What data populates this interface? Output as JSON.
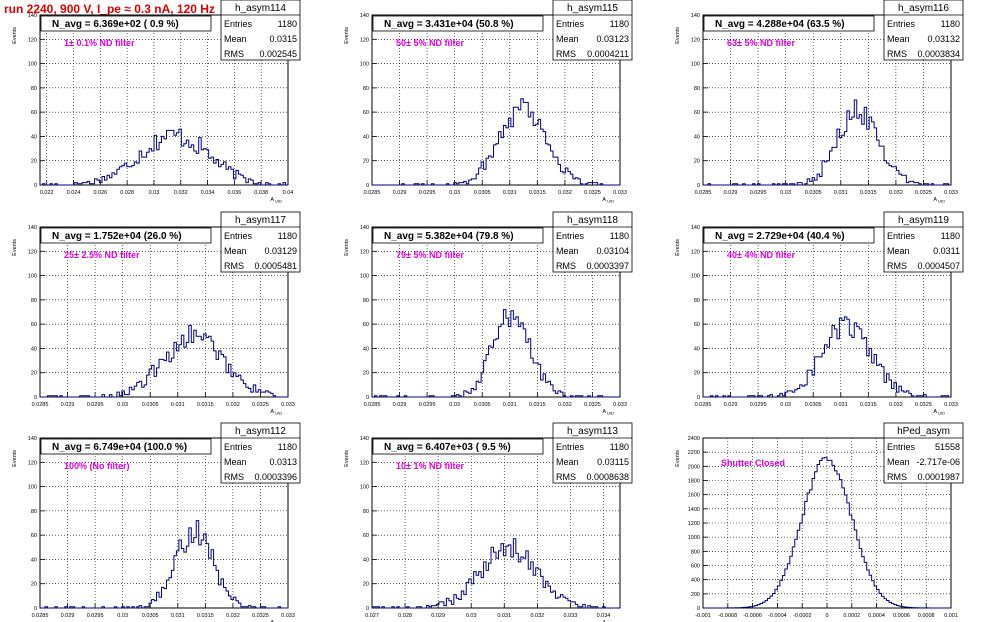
{
  "header": {
    "run_title": "run 2240,   900 V, I_pe ≈ 0.3 nA, 120 Hz"
  },
  "colors": {
    "histogram": "#000080",
    "header": "#e00000",
    "annotation": "#e000e0",
    "grid": "#000000"
  },
  "stats_labels": {
    "entries": "Entries",
    "mean": "Mean",
    "rms": "RMS"
  },
  "chart_data": [
    {
      "type": "histogram",
      "name": "h_asym114",
      "title": "N_avg = 6.369e+02 ( 0.9 %)",
      "note": "1± 0.1% ND filter",
      "entries": "1180",
      "mean": "0.0315",
      "rms": "0.002545",
      "xlabel": "A_UID",
      "ylabel": "Events",
      "xlim": [
        0.0215,
        0.04
      ],
      "ylim": [
        0,
        140
      ],
      "xticks": [
        "0.022",
        "0.024",
        "0.026",
        "0.028",
        "0.03",
        "0.032",
        "0.034",
        "0.036",
        "0.038",
        "0.04"
      ],
      "xtick_values": [
        0.022,
        0.024,
        0.026,
        0.028,
        0.03,
        0.032,
        0.034,
        0.036,
        0.038,
        0.04
      ],
      "yticks": [
        "0",
        "20",
        "40",
        "60",
        "80",
        "100",
        "120",
        "140"
      ],
      "ytick_values": [
        0,
        20,
        40,
        60,
        80,
        100,
        120,
        140
      ],
      "peak": 41,
      "gauss": {
        "mu": 0.0315,
        "sigma": 0.0026
      }
    },
    {
      "type": "histogram",
      "name": "h_asym115",
      "title": "N_avg = 3.431e+04 (50.8 %)",
      "note": "50± 5% ND filter",
      "entries": "1180",
      "mean": "0.03123",
      "rms": "0.0004211",
      "xlabel": "A_UID",
      "ylabel": "Events",
      "xlim": [
        0.0285,
        0.033
      ],
      "ylim": [
        0,
        140
      ],
      "xticks": [
        "0.0285",
        "0.029",
        "0.0295",
        "0.03",
        "0.0305",
        "0.031",
        "0.0315",
        "0.032",
        "0.0325",
        "0.033"
      ],
      "xtick_values": [
        0.0285,
        0.029,
        0.0295,
        0.03,
        0.0305,
        0.031,
        0.0315,
        0.032,
        0.0325,
        0.033
      ],
      "yticks": [
        "0",
        "20",
        "40",
        "60",
        "80",
        "100",
        "120",
        "140"
      ],
      "ytick_values": [
        0,
        20,
        40,
        60,
        80,
        100,
        120,
        140
      ],
      "peak": 65,
      "gauss": {
        "mu": 0.03123,
        "sigma": 0.00042
      }
    },
    {
      "type": "histogram",
      "name": "h_asym116",
      "title": "N_avg = 4.288e+04 (63.5 %)",
      "note": "63± 5% ND filter",
      "entries": "1180",
      "mean": "0.03132",
      "rms": "0.0003834",
      "xlabel": "A_UID",
      "ylabel": "Events",
      "xlim": [
        0.0285,
        0.033
      ],
      "ylim": [
        0,
        140
      ],
      "xticks": [
        "0.0285",
        "0.029",
        "0.0295",
        "0.03",
        "0.0305",
        "0.031",
        "0.0315",
        "0.032",
        "0.0325",
        "0.033"
      ],
      "xtick_values": [
        0.0285,
        0.029,
        0.0295,
        0.03,
        0.0305,
        0.031,
        0.0315,
        0.032,
        0.0325,
        0.033
      ],
      "yticks": [
        "0",
        "20",
        "40",
        "60",
        "80",
        "100",
        "120",
        "140"
      ],
      "ytick_values": [
        0,
        20,
        40,
        60,
        80,
        100,
        120,
        140
      ],
      "peak": 61,
      "gauss": {
        "mu": 0.03132,
        "sigma": 0.00038
      }
    },
    {
      "type": "histogram",
      "name": "h_asym117",
      "title": "N_avg = 1.752e+04 (26.0 %)",
      "note": "25± 2.5% ND filter",
      "entries": "1180",
      "mean": "0.03129",
      "rms": "0.0005481",
      "xlabel": "A_UID",
      "ylabel": "Events",
      "xlim": [
        0.0285,
        0.033
      ],
      "ylim": [
        0,
        140
      ],
      "xticks": [
        "0.0285",
        "0.029",
        "0.0295",
        "0.03",
        "0.0305",
        "0.031",
        "0.0315",
        "0.032",
        "0.0325",
        "0.033"
      ],
      "xtick_values": [
        0.0285,
        0.029,
        0.0295,
        0.03,
        0.0305,
        0.031,
        0.0315,
        0.032,
        0.0325,
        0.033
      ],
      "yticks": [
        "0",
        "20",
        "40",
        "60",
        "80",
        "100",
        "120",
        "140"
      ],
      "ytick_values": [
        0,
        20,
        40,
        60,
        80,
        100,
        120,
        140
      ],
      "peak": 50,
      "gauss": {
        "mu": 0.03129,
        "sigma": 0.00055
      }
    },
    {
      "type": "histogram",
      "name": "h_asym118",
      "title": "N_avg = 5.382e+04 (79.8 %)",
      "note": "79± 5% ND filter",
      "entries": "1180",
      "mean": "0.03104",
      "rms": "0.0003397",
      "xlabel": "A_UID",
      "ylabel": "Events",
      "xlim": [
        0.0285,
        0.033
      ],
      "ylim": [
        0,
        140
      ],
      "xticks": [
        "0.0285",
        "0.029",
        "0.0295",
        "0.03",
        "0.0305",
        "0.031",
        "0.0315",
        "0.032",
        "0.0325",
        "0.033"
      ],
      "xtick_values": [
        0.0285,
        0.029,
        0.0295,
        0.03,
        0.0305,
        0.031,
        0.0315,
        0.032,
        0.0325,
        0.033
      ],
      "yticks": [
        "0",
        "20",
        "40",
        "60",
        "80",
        "100",
        "120",
        "140"
      ],
      "ytick_values": [
        0,
        20,
        40,
        60,
        80,
        100,
        120,
        140
      ],
      "peak": 69,
      "gauss": {
        "mu": 0.03104,
        "sigma": 0.00034
      }
    },
    {
      "type": "histogram",
      "name": "h_asym119",
      "title": "N_avg = 2.729e+04 (40.4 %)",
      "note": "40± 4% ND filter",
      "entries": "1180",
      "mean": "0.0311",
      "rms": "0.0004507",
      "xlabel": "A_UID",
      "ylabel": "Events",
      "xlim": [
        0.0285,
        0.033
      ],
      "ylim": [
        0,
        140
      ],
      "xticks": [
        "0.0285",
        "0.029",
        "0.0295",
        "0.03",
        "0.0305",
        "0.031",
        "0.0315",
        "0.032",
        "0.0325",
        "0.033"
      ],
      "xtick_values": [
        0.0285,
        0.029,
        0.0295,
        0.03,
        0.0305,
        0.031,
        0.0315,
        0.032,
        0.0325,
        0.033
      ],
      "yticks": [
        "0",
        "20",
        "40",
        "60",
        "80",
        "100",
        "120",
        "140"
      ],
      "ytick_values": [
        0,
        20,
        40,
        60,
        80,
        100,
        120,
        140
      ],
      "peak": 58,
      "gauss": {
        "mu": 0.0311,
        "sigma": 0.00045
      }
    },
    {
      "type": "histogram",
      "name": "h_asym112",
      "title": "N_avg = 6.749e+04 (100.0 %)",
      "note": "100% (No filter)",
      "entries": "1180",
      "mean": "0.0313",
      "rms": "0.0003396",
      "xlabel": "A_UID",
      "ylabel": "Events",
      "xlim": [
        0.0285,
        0.033
      ],
      "ylim": [
        0,
        140
      ],
      "xticks": [
        "0.0285",
        "0.029",
        "0.0295",
        "0.03",
        "0.0305",
        "0.031",
        "0.0315",
        "0.032",
        "0.0325",
        "0.033"
      ],
      "xtick_values": [
        0.0285,
        0.029,
        0.0295,
        0.03,
        0.0305,
        0.031,
        0.0315,
        0.032,
        0.0325,
        0.033
      ],
      "yticks": [
        "0",
        "20",
        "40",
        "60",
        "80",
        "100",
        "120",
        "140"
      ],
      "ytick_values": [
        0,
        20,
        40,
        60,
        80,
        100,
        120,
        140
      ],
      "peak": 62,
      "gauss": {
        "mu": 0.0313,
        "sigma": 0.00034
      }
    },
    {
      "type": "histogram",
      "name": "h_asym113",
      "title": "N_avg = 6.407e+03 ( 9.5 %)",
      "note": "10± 1% ND filter",
      "entries": "1180",
      "mean": "0.03115",
      "rms": "0.0008638",
      "xlabel": "A_UID",
      "ylabel": "Events",
      "xlim": [
        0.027,
        0.0345
      ],
      "ylim": [
        0,
        140
      ],
      "xticks": [
        "0.027",
        "0.028",
        "0.029",
        "0.03",
        "0.031",
        "0.032",
        "0.033",
        "0.034"
      ],
      "xtick_values": [
        0.027,
        0.028,
        0.029,
        0.03,
        0.031,
        0.032,
        0.033,
        0.034
      ],
      "yticks": [
        "0",
        "20",
        "40",
        "60",
        "80",
        "100",
        "120",
        "140"
      ],
      "ytick_values": [
        0,
        20,
        40,
        60,
        80,
        100,
        120,
        140
      ],
      "peak": 49,
      "gauss": {
        "mu": 0.03115,
        "sigma": 0.00086
      }
    },
    {
      "type": "histogram",
      "name": "hPed_asym",
      "title": "",
      "note": "Shutter Closed",
      "entries": "51558",
      "mean": "-2.717e-06",
      "rms": "0.0001987",
      "xlabel": "",
      "ylabel": "Events",
      "xlim": [
        -0.001,
        0.001
      ],
      "ylim": [
        0,
        2400
      ],
      "xticks": [
        "-0.001",
        "-0.0008",
        "-0.0006",
        "-0.0004",
        "-0.0002",
        "0",
        "0.0002",
        "0.0004",
        "0.0006",
        "0.0008",
        "0.001"
      ],
      "xtick_values": [
        -0.001,
        -0.0008,
        -0.0006,
        -0.0004,
        -0.0002,
        0,
        0.0002,
        0.0004,
        0.0006,
        0.0008,
        0.001
      ],
      "yticks": [
        "0",
        "200",
        "400",
        "600",
        "800",
        "1000",
        "1200",
        "1400",
        "1600",
        "1800",
        "2000",
        "2200",
        "2400"
      ],
      "ytick_values": [
        0,
        200,
        400,
        600,
        800,
        1000,
        1200,
        1400,
        1600,
        1800,
        2000,
        2200,
        2400
      ],
      "peak": 2110,
      "gauss": {
        "mu": 0.0,
        "sigma": 0.0002
      }
    }
  ]
}
